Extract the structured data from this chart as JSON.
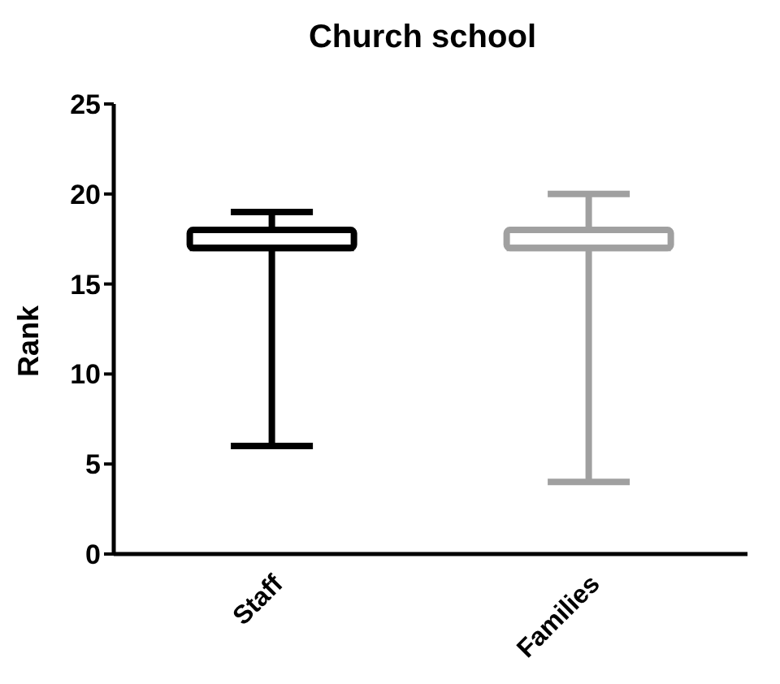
{
  "chart_data": {
    "type": "box",
    "title": "Church school",
    "ylabel": "Rank",
    "categories": [
      "Staff",
      "Families"
    ],
    "colors": [
      "#000000",
      "#a0a0a0"
    ],
    "boxes": [
      {
        "low": 6,
        "q1": 17,
        "median": 17,
        "q3": 18,
        "high": 19
      },
      {
        "low": 4,
        "q1": 17,
        "median": 17,
        "q3": 18,
        "high": 20
      }
    ],
    "ylim": [
      0,
      25
    ],
    "yticks": [
      0,
      5,
      10,
      15,
      20,
      25
    ]
  }
}
